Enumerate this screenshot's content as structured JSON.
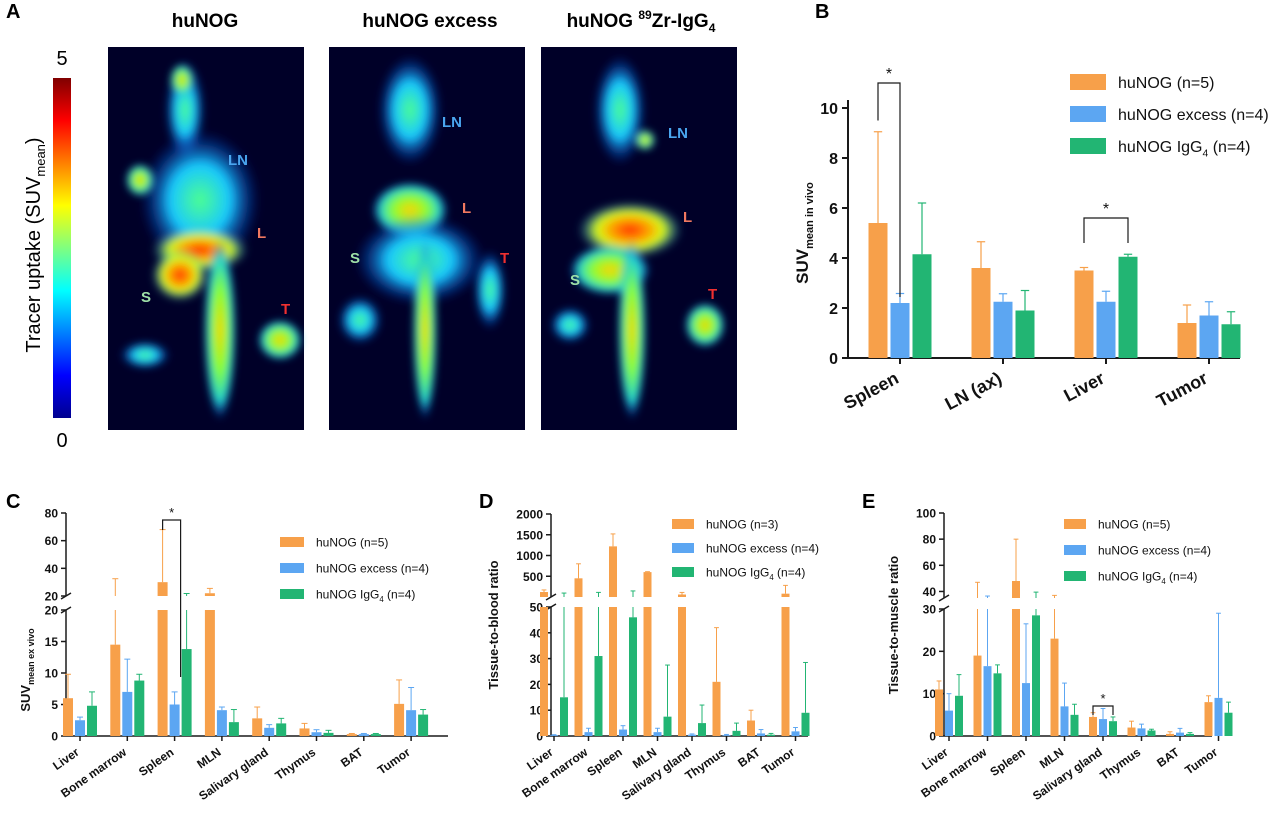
{
  "colors": {
    "huNOG": "#F7A04A",
    "excess": "#5CA6F2",
    "igg4": "#22B573",
    "axis": "#1a1a1a"
  },
  "panels": {
    "A": "A",
    "B": "B",
    "C": "C",
    "D": "D",
    "E": "E"
  },
  "panel_a": {
    "titles": [
      "huNOG",
      "huNOG excess",
      "huNOG "
    ],
    "title3_sup": "89",
    "title3_rest": "Zr-IgG",
    "title3_sub": "4",
    "colorbar_max": "5",
    "colorbar_min": "0",
    "colorbar_label_main": "Tracer uptake (SUV",
    "colorbar_label_sub": "mean",
    "colorbar_label_end": ")",
    "image1_labels": {
      "ln": "LN",
      "l": "L",
      "s": "S",
      "t": "T"
    },
    "image2_labels": {
      "ln": "LN",
      "l": "L",
      "s": "S",
      "t": "T"
    },
    "image3_labels": {
      "ln": "LN",
      "l": "L",
      "s": "S",
      "t": "T"
    }
  },
  "chart_data": [
    {
      "id": "B",
      "type": "bar",
      "categories": [
        "Spleen",
        "LN (ax)",
        "Liver",
        "Tumor"
      ],
      "ylabel_main": "SUV",
      "ylabel_sub": "mean in vivo",
      "yticks": [
        "0",
        "2",
        "4",
        "6",
        "8",
        "10"
      ],
      "ylim": [
        0,
        10.5
      ],
      "legend": [
        "huNOG (n=5)",
        "huNOG excess (n=4)",
        "huNOG IgG",
        "4",
        " (n=4)"
      ],
      "series": [
        {
          "values": [
            5.4,
            3.6,
            3.5,
            1.4
          ],
          "errors": [
            3.65,
            1.05,
            0.12,
            0.72
          ]
        },
        {
          "values": [
            2.2,
            2.25,
            2.25,
            1.7
          ],
          "errors": [
            0.38,
            0.32,
            0.42,
            0.55
          ]
        },
        {
          "values": [
            4.15,
            1.9,
            4.05,
            1.35
          ],
          "errors": [
            2.05,
            0.8,
            0.1,
            0.5
          ]
        }
      ],
      "significance": [
        "*",
        "*"
      ]
    },
    {
      "id": "C",
      "type": "bar",
      "categories": [
        "Liver",
        "Bone marrow",
        "Spleen",
        "MLN",
        "Salivary gland",
        "Thymus",
        "BAT",
        "Tumor"
      ],
      "ylabel_main": "SUV",
      "ylabel_sub": "mean ex vivo",
      "yticks_low": [
        "0",
        "5",
        "10",
        "15",
        "20"
      ],
      "yticks_high": [
        "20",
        "40",
        "60",
        "80"
      ],
      "legend": [
        "huNOG (n=5)",
        "huNOG excess (n=4)",
        "huNOG IgG",
        "4",
        " (n=4)"
      ],
      "series": [
        {
          "values": [
            6.0,
            14.5,
            30.0,
            22.0,
            2.8,
            1.2,
            0.3,
            5.1
          ],
          "errors": [
            3.8,
            18.0,
            38.0,
            3.5,
            1.8,
            0.8,
            0.1,
            3.8
          ]
        },
        {
          "values": [
            2.5,
            7.0,
            5.0,
            4.1,
            1.3,
            0.6,
            0.3,
            4.1
          ],
          "errors": [
            0.5,
            5.2,
            2.0,
            0.5,
            0.5,
            0.4,
            0.1,
            3.6
          ]
        },
        {
          "values": [
            4.8,
            8.8,
            13.8,
            2.2,
            2.0,
            0.5,
            0.3,
            3.4
          ],
          "errors": [
            2.2,
            1.0,
            8.0,
            2.0,
            0.8,
            0.4,
            0.1,
            0.8
          ]
        }
      ],
      "significance": [
        "*"
      ]
    },
    {
      "id": "D",
      "type": "bar",
      "categories": [
        "Liver",
        "Bone marrow",
        "Spleen",
        "MLN",
        "Salivary gland",
        "Thymus",
        "BAT",
        "Tumor"
      ],
      "ylabel": "Tissue-to-blood ratio",
      "yticks_low": [
        "0",
        "10",
        "20",
        "30",
        "40",
        "50"
      ],
      "yticks_high": [
        "500",
        "1000",
        "1500",
        "2000"
      ],
      "legend": [
        "huNOG (n=3)",
        "huNOG excess (n=4)",
        "huNOG IgG",
        "4",
        " (n=4)"
      ],
      "series": [
        {
          "values": [
            120,
            450,
            1220,
            600,
            60,
            21,
            6,
            80
          ],
          "errors": [
            50,
            350,
            300,
            10,
            50,
            21,
            4,
            200
          ]
        },
        {
          "values": [
            0.3,
            1.5,
            2.5,
            1.5,
            0.5,
            0.3,
            1.0,
            1.8
          ],
          "errors": [
            0.2,
            1.5,
            1.5,
            1.5,
            0.3,
            0.3,
            1.5,
            1.5
          ]
        },
        {
          "values": [
            15,
            31,
            46,
            7.5,
            5,
            2,
            0.5,
            9
          ],
          "errors": [
            80,
            80,
            100,
            20,
            7,
            3,
            0.5,
            19.5
          ]
        }
      ]
    },
    {
      "id": "E",
      "type": "bar",
      "categories": [
        "Liver",
        "Bone marrow",
        "Spleen",
        "MLN",
        "Salivary gland",
        "Thymus",
        "BAT",
        "Tumor"
      ],
      "ylabel": "Tissue-to-muscle ratio",
      "yticks_low": [
        "0",
        "10",
        "20",
        "30"
      ],
      "yticks_high": [
        "40",
        "60",
        "80",
        "100"
      ],
      "legend": [
        "huNOG (n=5)",
        "huNOG excess (n=4)",
        "huNOG IgG",
        "4",
        " (n=4)"
      ],
      "series": [
        {
          "values": [
            11,
            19,
            48,
            23,
            4.5,
            2,
            0.5,
            8
          ],
          "errors": [
            2,
            28,
            32,
            14,
            1,
            1.5,
            0.5,
            1.5
          ]
        },
        {
          "values": [
            6,
            16.5,
            12.5,
            7,
            4,
            1.8,
            0.8,
            9
          ],
          "errors": [
            4,
            20,
            14,
            5.5,
            2.5,
            1,
            1,
            20
          ]
        },
        {
          "values": [
            9.5,
            14.8,
            28.5,
            5,
            3.5,
            1.3,
            0.5,
            5.5
          ],
          "errors": [
            5,
            2,
            11,
            2.5,
            1,
            0.3,
            0.3,
            2.5
          ]
        }
      ],
      "significance": [
        "*"
      ]
    }
  ]
}
